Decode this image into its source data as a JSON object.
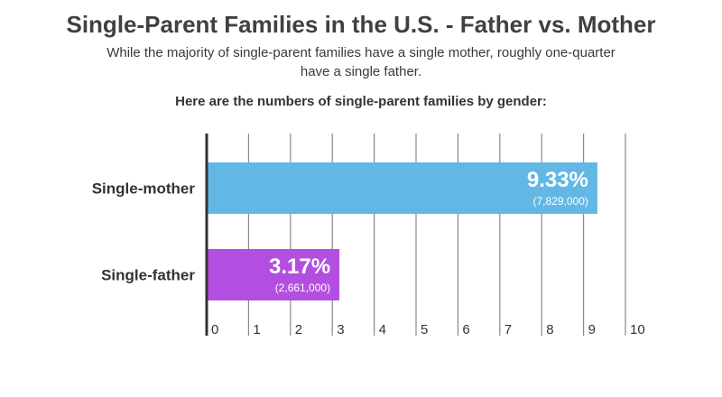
{
  "header": {
    "title": "Single-Parent Families in the U.S. - Father vs. Mother",
    "subtitle": "While the majority of single-parent families have a single mother, roughly one-quarter have a single father.",
    "intro": "Here are the numbers of single-parent families by gender:"
  },
  "chart_data": {
    "type": "bar",
    "orientation": "horizontal",
    "categories": [
      "Single-mother",
      "Single-father"
    ],
    "values": [
      9.33,
      3.17
    ],
    "value_labels": [
      "9.33%",
      "3.17%"
    ],
    "count_labels": [
      "(7,829,000)",
      "(2,661,000)"
    ],
    "colors": [
      "#62b8e4",
      "#b34fe0"
    ],
    "xlim": [
      0,
      10
    ],
    "ticks": [
      "0",
      "1",
      "2",
      "3",
      "4",
      "5",
      "6",
      "7",
      "8",
      "9",
      "10"
    ],
    "grid": true
  }
}
